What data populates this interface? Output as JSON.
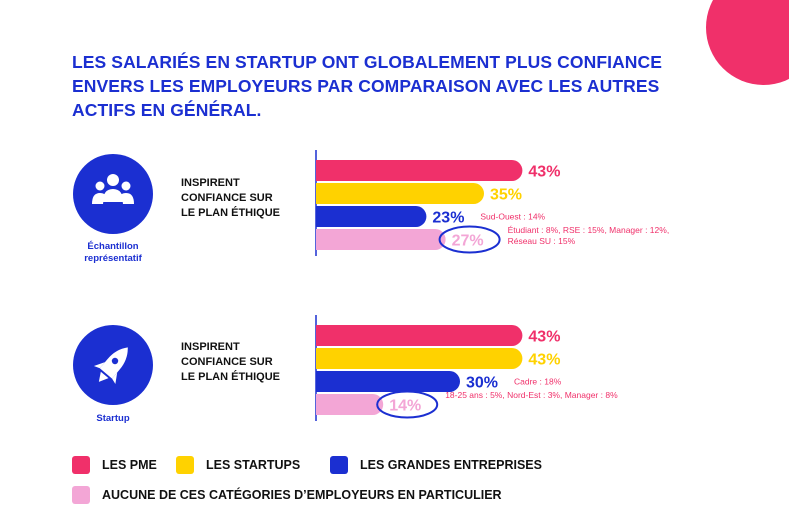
{
  "colors": {
    "pme": "#f0306a",
    "startups": "#ffd200",
    "grandes": "#1b2fd1",
    "aucune": "#f3a6d6",
    "text_blue": "#1b2fd1",
    "corner": "#f0306a"
  },
  "title_lines": [
    "LES SALARIÉS EN STARTUP ONT GLOBALEMENT PLUS CONFIANCE",
    "ENVERS LES EMPLOYEURS PAR COMPARAISON AVEC LES AUTRES",
    "ACTIFS EN GÉNÉRAL."
  ],
  "panels": [
    {
      "icon": "group-icon",
      "caption_lines": [
        "Échantillon",
        "représentatif"
      ],
      "question_lines": [
        "INSPIRENT",
        "CONFIANCE SUR",
        "LE PLAN ÉTHIQUE"
      ]
    },
    {
      "icon": "rocket-icon",
      "caption_lines": [
        "Startup"
      ],
      "question_lines": [
        "INSPIRENT",
        "CONFIANCE SUR",
        "LE PLAN ÉTHIQUE"
      ]
    }
  ],
  "legend": [
    {
      "label": "LES PME",
      "color": "#f0306a"
    },
    {
      "label": "LES STARTUPS",
      "color": "#ffd200"
    },
    {
      "label": "LES GRANDES ENTREPRISES",
      "color": "#1b2fd1"
    },
    {
      "label": "AUCUNE DE CES CATÉGORIES D’EMPLOYEURS EN PARTICULIER",
      "color": "#f3a6d6"
    }
  ],
  "chart_data": [
    {
      "type": "bar",
      "orientation": "horizontal",
      "series": [
        {
          "name": "LES PME",
          "value": 43,
          "label": "43%",
          "color": "#f0306a"
        },
        {
          "name": "LES STARTUPS",
          "value": 35,
          "label": "35%",
          "color": "#ffd200"
        },
        {
          "name": "LES GRANDES ENTREPRISES",
          "value": 23,
          "label": "23%",
          "color": "#1b2fd1",
          "annotation": [
            "Sud-Ouest : 14%"
          ]
        },
        {
          "name": "AUCUNE DE CES CATÉGORIES D’EMPLOYEURS EN PARTICULIER",
          "value": 27,
          "label": "27%",
          "color": "#f3a6d6",
          "circled": true,
          "annotation": [
            "Étudiant : 8%, RSE : 15%, Manager : 12%,",
            "Réseau SU : 15%"
          ]
        }
      ]
    },
    {
      "type": "bar",
      "orientation": "horizontal",
      "series": [
        {
          "name": "LES PME",
          "value": 43,
          "label": "43%",
          "color": "#f0306a"
        },
        {
          "name": "LES STARTUPS",
          "value": 43,
          "label": "43%",
          "color": "#ffd200"
        },
        {
          "name": "LES GRANDES ENTREPRISES",
          "value": 30,
          "label": "30%",
          "color": "#1b2fd1",
          "annotation": [
            "Cadre : 18%"
          ]
        },
        {
          "name": "AUCUNE DE CES CATÉGORIES D’EMPLOYEURS EN PARTICULIER",
          "value": 14,
          "label": "14%",
          "color": "#f3a6d6",
          "circled": true,
          "annotation": [
            "18-25 ans : 5%, Nord-Est : 3%, Manager : 8%"
          ]
        }
      ]
    }
  ]
}
